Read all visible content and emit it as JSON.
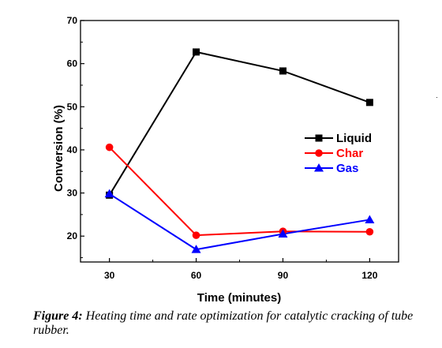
{
  "chart_data": {
    "type": "line",
    "x": [
      30,
      60,
      90,
      120
    ],
    "xlabel": "Time (minutes)",
    "ylabel": "Conversion (%)",
    "xticks": [
      "30",
      "60",
      "90",
      "120"
    ],
    "yticks": [
      "20",
      "30",
      "40",
      "50",
      "60",
      "70"
    ],
    "xlim": [
      20,
      130
    ],
    "ylim": [
      14,
      70
    ],
    "legend_position": "center-right",
    "series": [
      {
        "name": "Liquid",
        "color": "#000000",
        "marker": "square",
        "values": [
          29.5,
          62.7,
          58.3,
          51.0
        ]
      },
      {
        "name": "Char",
        "color": "#ff0000",
        "marker": "circle",
        "values": [
          40.6,
          20.2,
          21.1,
          21.0
        ]
      },
      {
        "name": "Gas",
        "color": "#0000ff",
        "marker": "triangle",
        "values": [
          29.8,
          16.9,
          20.5,
          23.8
        ]
      }
    ]
  },
  "caption": {
    "label": "Figure 4:",
    "text": " Heating time and rate optimization for catalytic cracking of tube rubber."
  },
  "stray_mark": "·"
}
